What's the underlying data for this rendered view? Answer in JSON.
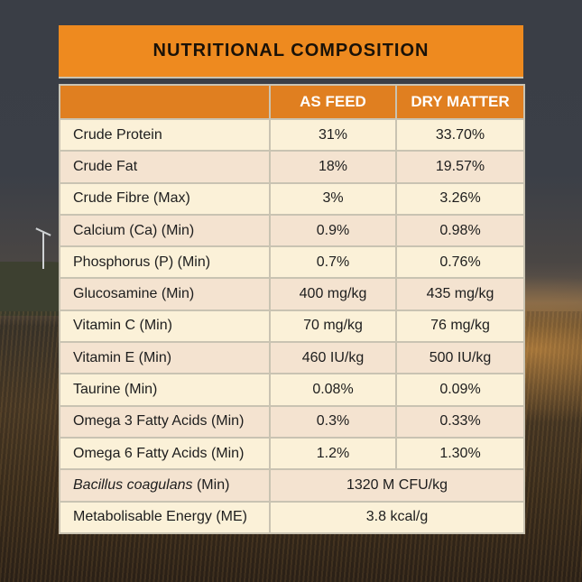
{
  "title": "NUTRITIONAL COMPOSITION",
  "headers": {
    "nutrient": "",
    "as_feed": "AS FEED",
    "dry_matter": "DRY MATTER"
  },
  "rows": [
    {
      "label": "Crude Protein",
      "as_feed": "31%",
      "dry_matter": "33.70%"
    },
    {
      "label": "Crude Fat",
      "as_feed": "18%",
      "dry_matter": "19.57%"
    },
    {
      "label": "Crude Fibre (Max)",
      "as_feed": "3%",
      "dry_matter": "3.26%"
    },
    {
      "label": "Calcium (Ca) (Min)",
      "as_feed": "0.9%",
      "dry_matter": "0.98%"
    },
    {
      "label": "Phosphorus (P) (Min)",
      "as_feed": "0.7%",
      "dry_matter": "0.76%"
    },
    {
      "label": "Glucosamine (Min)",
      "as_feed": "400 mg/kg",
      "dry_matter": "435 mg/kg"
    },
    {
      "label": "Vitamin C (Min)",
      "as_feed": "70 mg/kg",
      "dry_matter": "76 mg/kg"
    },
    {
      "label": "Vitamin E (Min)",
      "as_feed": "460 IU/kg",
      "dry_matter": "500 IU/kg"
    },
    {
      "label": "Taurine (Min)",
      "as_feed": "0.08%",
      "dry_matter": "0.09%"
    },
    {
      "label": "Omega 3 Fatty Acids (Min)",
      "as_feed": "0.3%",
      "dry_matter": "0.33%"
    },
    {
      "label": "Omega 6 Fatty Acids (Min)",
      "as_feed": "1.2%",
      "dry_matter": "1.30%"
    }
  ],
  "merged_rows": [
    {
      "label_italic": "Bacillus coagulans",
      "label_rest": " (Min)",
      "value": "1320 M CFU/kg"
    },
    {
      "label": "Metabolisable Energy (ME)",
      "value": "3.8 kcal/g"
    }
  ],
  "colors": {
    "title_bg": "#ee8a1f",
    "header_bg": "#e07f20",
    "row_light": "#fbf1d8",
    "row_dark": "#f4e3d0"
  }
}
